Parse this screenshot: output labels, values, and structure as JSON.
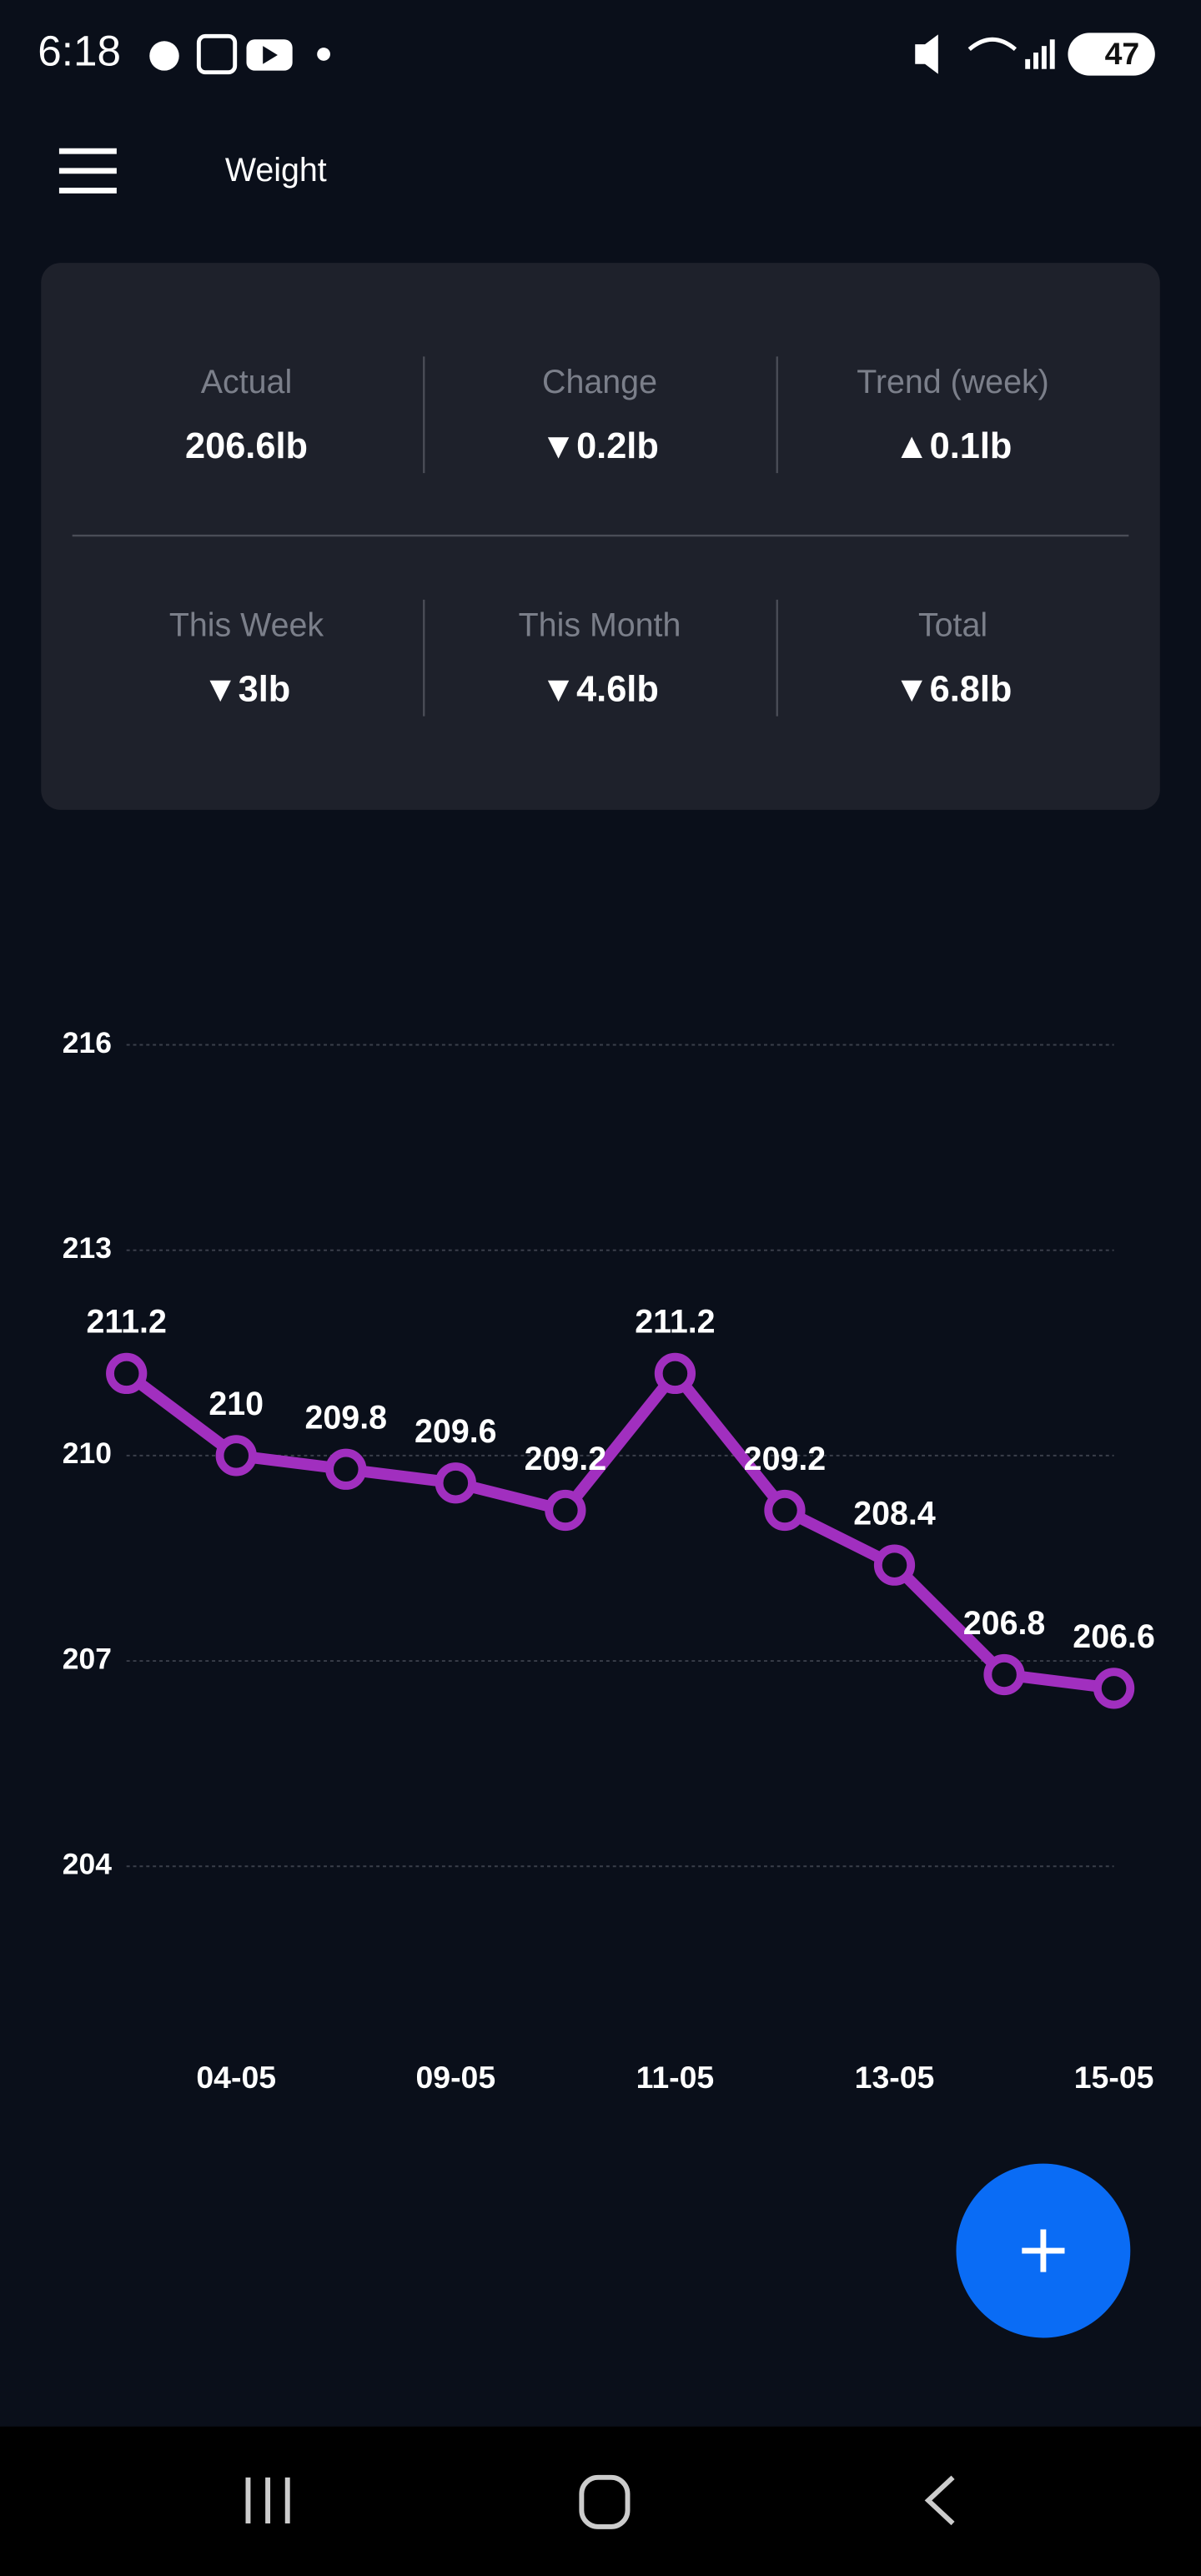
{
  "status_bar": {
    "time": "6:18",
    "battery": "47"
  },
  "header": {
    "title": "Weight"
  },
  "stats": [
    {
      "label": "Actual",
      "value": "206.6lb"
    },
    {
      "label": "Change",
      "value": "▼0.2lb"
    },
    {
      "label": "Trend (week)",
      "value": "▲0.1lb"
    },
    {
      "label": "This Week",
      "value": "▼3lb"
    },
    {
      "label": "This Month",
      "value": "▼4.6lb"
    },
    {
      "label": "Total",
      "value": "▼6.8lb"
    }
  ],
  "chart_data": {
    "type": "line",
    "categories": [
      null,
      "04-05",
      null,
      "09-05",
      null,
      "11-05",
      null,
      "13-05",
      null,
      "15-05"
    ],
    "values": [
      211.2,
      210,
      209.8,
      209.6,
      209.2,
      211.2,
      209.2,
      208.4,
      206.8,
      206.6
    ],
    "color": "#a12fbf",
    "ylim": [
      204,
      216
    ],
    "yticks": [
      204,
      207,
      210,
      213,
      216
    ],
    "grid": true
  }
}
